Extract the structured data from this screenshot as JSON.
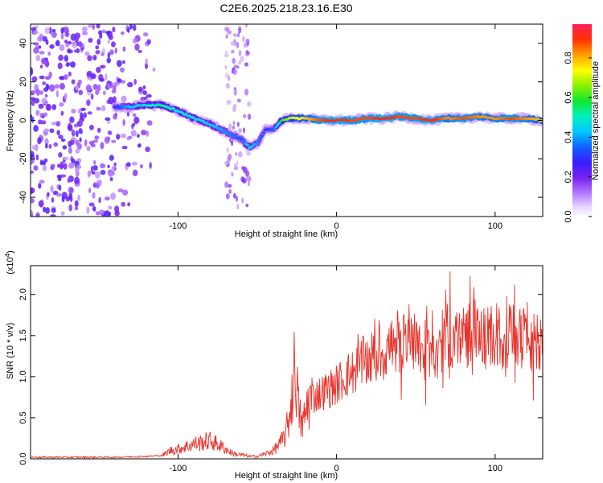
{
  "title": "C2E6.2025.218.23.16.E30",
  "chart_data": [
    {
      "type": "heatmap",
      "xlabel": "Height of straight line (km)",
      "ylabel": "Frequency (Hz)",
      "xlim": [
        -193,
        130
      ],
      "ylim": [
        -50,
        50
      ],
      "x_ticks": [
        -100,
        0,
        100
      ],
      "x_tick_labels": [
        "-100",
        "0",
        "100"
      ],
      "y_ticks": [
        -40,
        -20,
        0,
        20,
        40
      ],
      "y_tick_labels": [
        "-40",
        "-20",
        "0",
        "20",
        "40"
      ],
      "colorbar": {
        "label": "Normalized spectral amplitude",
        "range": [
          0,
          0.97
        ],
        "ticks": [
          0,
          0.2,
          0.4,
          0.6,
          0.8
        ],
        "tick_labels": [
          "0.0",
          "0.2",
          "0.4",
          "0.6",
          "0.8"
        ]
      },
      "ridge": {
        "x": [
          -140,
          -130,
          -120,
          -110,
          -100,
          -90,
          -80,
          -70,
          -60,
          -55,
          -50,
          -45,
          -40,
          -35,
          -30,
          -20,
          -10,
          0,
          10,
          20,
          30,
          40,
          50,
          60,
          70,
          80,
          90,
          100,
          110,
          120,
          130
        ],
        "frequency": [
          7,
          7,
          8,
          8,
          5,
          1,
          -2,
          -6,
          -10,
          -14,
          -12,
          -5,
          -5,
          0,
          1,
          1,
          0,
          0,
          0,
          1,
          1,
          2,
          1,
          0,
          1,
          1,
          2,
          1,
          1,
          1,
          0
        ],
        "amplitude": [
          0.3,
          0.45,
          0.5,
          0.55,
          0.5,
          0.5,
          0.45,
          0.4,
          0.35,
          0.5,
          0.4,
          0.3,
          0.35,
          0.6,
          0.7,
          0.8,
          0.9,
          0.95,
          0.9,
          0.9,
          0.95,
          0.9,
          0.9,
          0.95,
          0.85,
          0.9,
          0.85,
          0.85,
          0.9,
          0.85,
          0.8
        ]
      },
      "noise_band_x": [
        -193,
        -115
      ],
      "noise_stripe_x": [
        -70,
        -55
      ]
    },
    {
      "type": "line",
      "xlabel": "Height of straight line (km)",
      "ylabel": "SNR (10 * v/v)",
      "y_multiplier": "(x10^4)",
      "xlim": [
        -193,
        130
      ],
      "ylim": [
        0,
        2.35
      ],
      "x_ticks": [
        -100,
        0,
        100
      ],
      "x_tick_labels": [
        "-100",
        "0",
        "100"
      ],
      "y_ticks": [
        0,
        0.5,
        1.0,
        1.5,
        2.0
      ],
      "y_tick_labels": [
        "0.0",
        "0.5",
        "1.0",
        "1.5",
        "2.0"
      ],
      "line_color": "#e8342c",
      "series": [
        {
          "x": [
            -193,
            -180,
            -160,
            -140,
            -120,
            -110,
            -105,
            -100,
            -95,
            -90,
            -85,
            -80,
            -75,
            -70,
            -65,
            -60,
            -55,
            -50,
            -45,
            -40,
            -35,
            -32,
            -30,
            -28,
            -26,
            -24,
            -22,
            -20,
            -18,
            -15,
            -10,
            -5,
            0,
            5,
            10,
            15,
            20,
            25,
            30,
            35,
            40,
            45,
            50,
            55,
            60,
            65,
            70,
            75,
            80,
            85,
            90,
            95,
            100,
            105,
            110,
            115,
            120,
            125,
            130
          ],
          "y": [
            0.02,
            0.02,
            0.02,
            0.02,
            0.03,
            0.04,
            0.1,
            0.12,
            0.15,
            0.18,
            0.2,
            0.22,
            0.18,
            0.12,
            0.06,
            0.05,
            0.03,
            0.03,
            0.06,
            0.1,
            0.2,
            0.3,
            0.5,
            0.8,
            1.2,
            0.6,
            0.4,
            0.5,
            0.7,
            0.75,
            0.8,
            0.85,
            0.9,
            1.0,
            1.05,
            1.15,
            1.2,
            1.25,
            1.3,
            1.4,
            1.45,
            1.5,
            1.5,
            1.35,
            1.2,
            1.4,
            1.5,
            1.45,
            1.5,
            1.55,
            1.5,
            1.45,
            1.5,
            1.45,
            1.5,
            1.45,
            1.5,
            1.45,
            1.42
          ]
        }
      ]
    }
  ]
}
